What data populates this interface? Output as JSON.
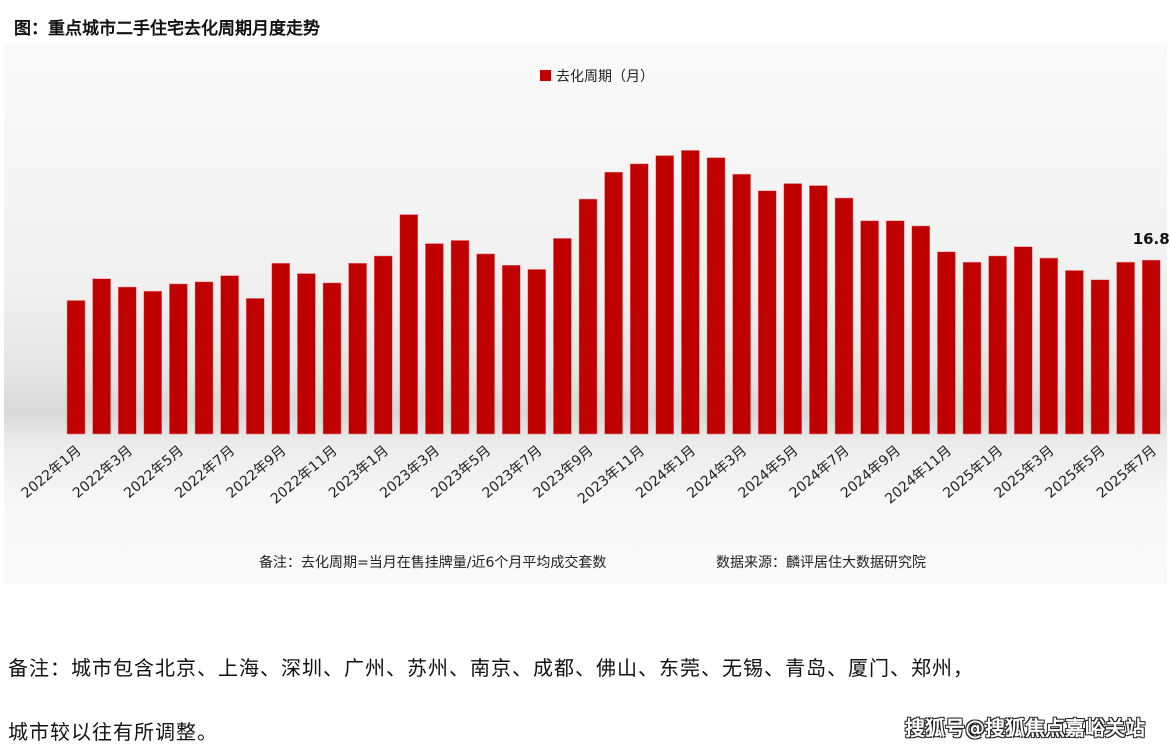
{
  "chart_data": {
    "type": "bar",
    "title": "图：重点城市二手住宅去化周期月度走势",
    "legend": {
      "label": "去化周期（月）",
      "placement": "top-center"
    },
    "categories": [
      "2022年1月",
      "2022年2月",
      "2022年3月",
      "2022年4月",
      "2022年5月",
      "2022年6月",
      "2022年7月",
      "2022年8月",
      "2022年9月",
      "2022年10月",
      "2022年11月",
      "2022年12月",
      "2023年1月",
      "2023年2月",
      "2023年3月",
      "2023年4月",
      "2023年5月",
      "2023年6月",
      "2023年7月",
      "2023年8月",
      "2023年9月",
      "2023年10月",
      "2023年11月",
      "2023年12月",
      "2024年1月",
      "2024年2月",
      "2024年3月",
      "2024年4月",
      "2024年5月",
      "2024年6月",
      "2024年7月",
      "2024年8月",
      "2024年9月",
      "2024年10月",
      "2024年11月",
      "2024年12月",
      "2025年1月",
      "2025年2月",
      "2025年3月",
      "2025年4月",
      "2025年5月",
      "2025年6月",
      "2025年7月"
    ],
    "x_tick_labels": [
      "2022年1月",
      "2022年3月",
      "2022年5月",
      "2022年7月",
      "2022年9月",
      "2022年11月",
      "2023年1月",
      "2023年3月",
      "2023年5月",
      "2023年7月",
      "2023年9月",
      "2023年11月",
      "2024年1月",
      "2024年3月",
      "2024年5月",
      "2024年7月",
      "2024年9月",
      "2024年11月",
      "2025年1月",
      "2025年3月",
      "2025年5月",
      "2025年7月"
    ],
    "series": [
      {
        "name": "去化周期（月）",
        "color": "#c00000",
        "values": [
          12.9,
          15.0,
          14.2,
          13.8,
          14.5,
          14.7,
          15.3,
          13.1,
          16.5,
          15.5,
          14.6,
          16.5,
          17.2,
          21.2,
          18.4,
          18.7,
          17.4,
          16.3,
          15.9,
          18.9,
          22.7,
          25.3,
          26.1,
          26.9,
          27.4,
          26.7,
          25.1,
          23.5,
          24.2,
          24.0,
          22.8,
          20.6,
          20.6,
          20.1,
          17.6,
          16.6,
          17.2,
          18.1,
          17.0,
          15.8,
          14.9,
          16.6,
          16.8
        ]
      }
    ],
    "data_labels": [
      {
        "category": "2025年7月",
        "value": "16.8"
      }
    ],
    "ylim": [
      0,
      40
    ],
    "grid": false,
    "y_axis_visible": false
  },
  "notes": {
    "chart_note": "备注：去化周期=当月在售挂牌量/近6个月平均成交套数",
    "source": "数据来源：麟评居住大数据研究院",
    "footnote_line1": "备注：城市包含北京、上海、深圳、广州、苏州、南京、成都、佛山、东莞、无锡、青岛、厦门、郑州，",
    "footnote_line2": "城市较以往有所调整。",
    "watermark": "搜狐号@搜狐焦点嘉峪关站"
  }
}
